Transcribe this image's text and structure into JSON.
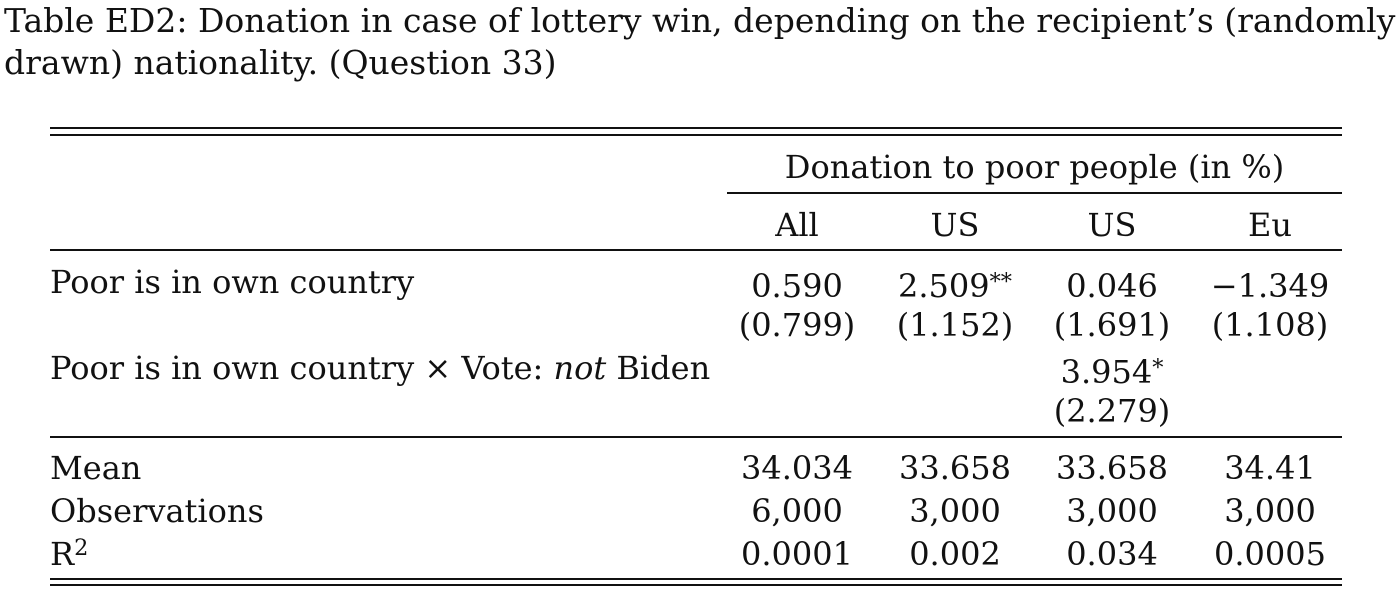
{
  "caption": {
    "line1": "Table ED2: Donation in case of lottery win, depending on the recipient’s (randomly",
    "line2": "drawn) nationality. (Question 33)"
  },
  "header": {
    "spanner": "Donation to poor people (in %)",
    "columns": [
      "All",
      "US",
      "US",
      "Eu"
    ]
  },
  "rows": {
    "own_country": {
      "label": "Poor is in own country",
      "coefs": [
        "0.590",
        "2.509",
        "0.046",
        "−1.349"
      ],
      "coef_stars": [
        "",
        "**",
        "",
        ""
      ],
      "ses": [
        "(0.799)",
        "(1.152)",
        "(1.691)",
        "(1.108)"
      ]
    },
    "interaction": {
      "label_prefix": "Poor is in own country × Vote: ",
      "label_italic": "not",
      "label_suffix": " Biden",
      "coef": "3.954",
      "coef_stars": "*",
      "se": "(2.279)"
    },
    "mean": {
      "label": "Mean",
      "values": [
        "34.034",
        "33.658",
        "33.658",
        "34.41"
      ]
    },
    "observations": {
      "label": "Observations",
      "values": [
        "6,000",
        "3,000",
        "3,000",
        "3,000"
      ]
    },
    "r2": {
      "label_base": "R",
      "label_sup": "2",
      "values": [
        "0.0001",
        "0.002",
        "0.034",
        "0.0005"
      ]
    }
  }
}
